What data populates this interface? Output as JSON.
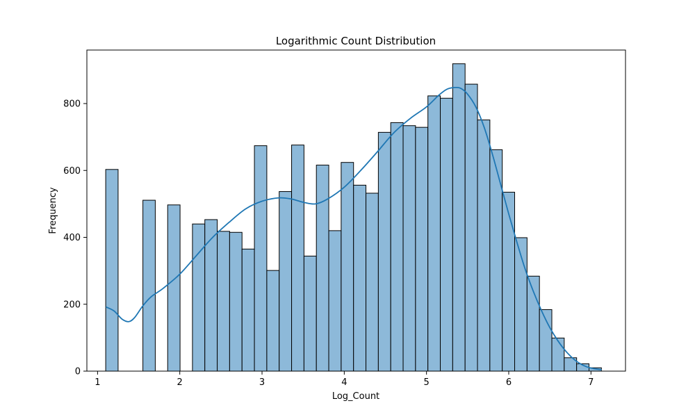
{
  "chart_data": {
    "type": "bar",
    "title": "Logarithmic Count Distribution",
    "xlabel": "Log_Count",
    "ylabel": "Frequency",
    "xlim": [
      0.87,
      7.42
    ],
    "ylim": [
      0,
      960
    ],
    "xticks": [
      1,
      2,
      3,
      4,
      5,
      6,
      7
    ],
    "yticks": [
      0,
      200,
      400,
      600,
      800
    ],
    "bin_width": 0.1507,
    "bins": [
      {
        "x0": 1.099,
        "count": 603
      },
      {
        "x0": 1.2497,
        "count": 0
      },
      {
        "x0": 1.4004,
        "count": 0
      },
      {
        "x0": 1.5511,
        "count": 511
      },
      {
        "x0": 1.7018,
        "count": 0
      },
      {
        "x0": 1.8525,
        "count": 497
      },
      {
        "x0": 2.0032,
        "count": 0
      },
      {
        "x0": 2.1539,
        "count": 440
      },
      {
        "x0": 2.3046,
        "count": 453
      },
      {
        "x0": 2.4553,
        "count": 418
      },
      {
        "x0": 2.606,
        "count": 415
      },
      {
        "x0": 2.7567,
        "count": 365
      },
      {
        "x0": 2.9074,
        "count": 674
      },
      {
        "x0": 3.0581,
        "count": 301
      },
      {
        "x0": 3.2088,
        "count": 537
      },
      {
        "x0": 3.3595,
        "count": 676
      },
      {
        "x0": 3.5102,
        "count": 344
      },
      {
        "x0": 3.6609,
        "count": 616
      },
      {
        "x0": 3.8116,
        "count": 420
      },
      {
        "x0": 3.9623,
        "count": 624
      },
      {
        "x0": 4.113,
        "count": 556
      },
      {
        "x0": 4.2637,
        "count": 532
      },
      {
        "x0": 4.4144,
        "count": 714
      },
      {
        "x0": 4.5651,
        "count": 743
      },
      {
        "x0": 4.7158,
        "count": 734
      },
      {
        "x0": 4.8665,
        "count": 729
      },
      {
        "x0": 5.0172,
        "count": 823
      },
      {
        "x0": 5.1679,
        "count": 816
      },
      {
        "x0": 5.3186,
        "count": 919
      },
      {
        "x0": 5.4693,
        "count": 858
      },
      {
        "x0": 5.62,
        "count": 751
      },
      {
        "x0": 5.7707,
        "count": 662
      },
      {
        "x0": 5.9214,
        "count": 535
      },
      {
        "x0": 6.0721,
        "count": 399
      },
      {
        "x0": 6.2228,
        "count": 284
      },
      {
        "x0": 6.3735,
        "count": 184
      },
      {
        "x0": 6.5242,
        "count": 99
      },
      {
        "x0": 6.6749,
        "count": 40
      },
      {
        "x0": 6.8256,
        "count": 22
      },
      {
        "x0": 6.9763,
        "count": 10
      }
    ],
    "kde": {
      "x": [
        1.1,
        1.2,
        1.3,
        1.38,
        1.45,
        1.55,
        1.65,
        1.8,
        2.0,
        2.2,
        2.4,
        2.6,
        2.8,
        3.0,
        3.2,
        3.35,
        3.5,
        3.65,
        3.8,
        4.0,
        4.2,
        4.4,
        4.6,
        4.8,
        5.0,
        5.15,
        5.25,
        5.35,
        5.42,
        5.5,
        5.6,
        5.7,
        5.8,
        5.9,
        6.0,
        6.1,
        6.2,
        6.3,
        6.4,
        6.5,
        6.6,
        6.7,
        6.8,
        6.9,
        7.0,
        7.13
      ],
      "y": [
        192,
        180,
        155,
        148,
        160,
        195,
        222,
        248,
        290,
        345,
        400,
        445,
        485,
        508,
        518,
        515,
        505,
        500,
        515,
        550,
        600,
        655,
        712,
        755,
        790,
        825,
        843,
        848,
        845,
        828,
        790,
        730,
        650,
        560,
        470,
        385,
        305,
        238,
        180,
        130,
        90,
        58,
        34,
        18,
        9,
        4
      ]
    },
    "colors": {
      "bar_fill": "#8db9d9",
      "bar_edge": "#000000",
      "kde_line": "#1f77b4"
    },
    "grid": false,
    "legend": "none"
  }
}
